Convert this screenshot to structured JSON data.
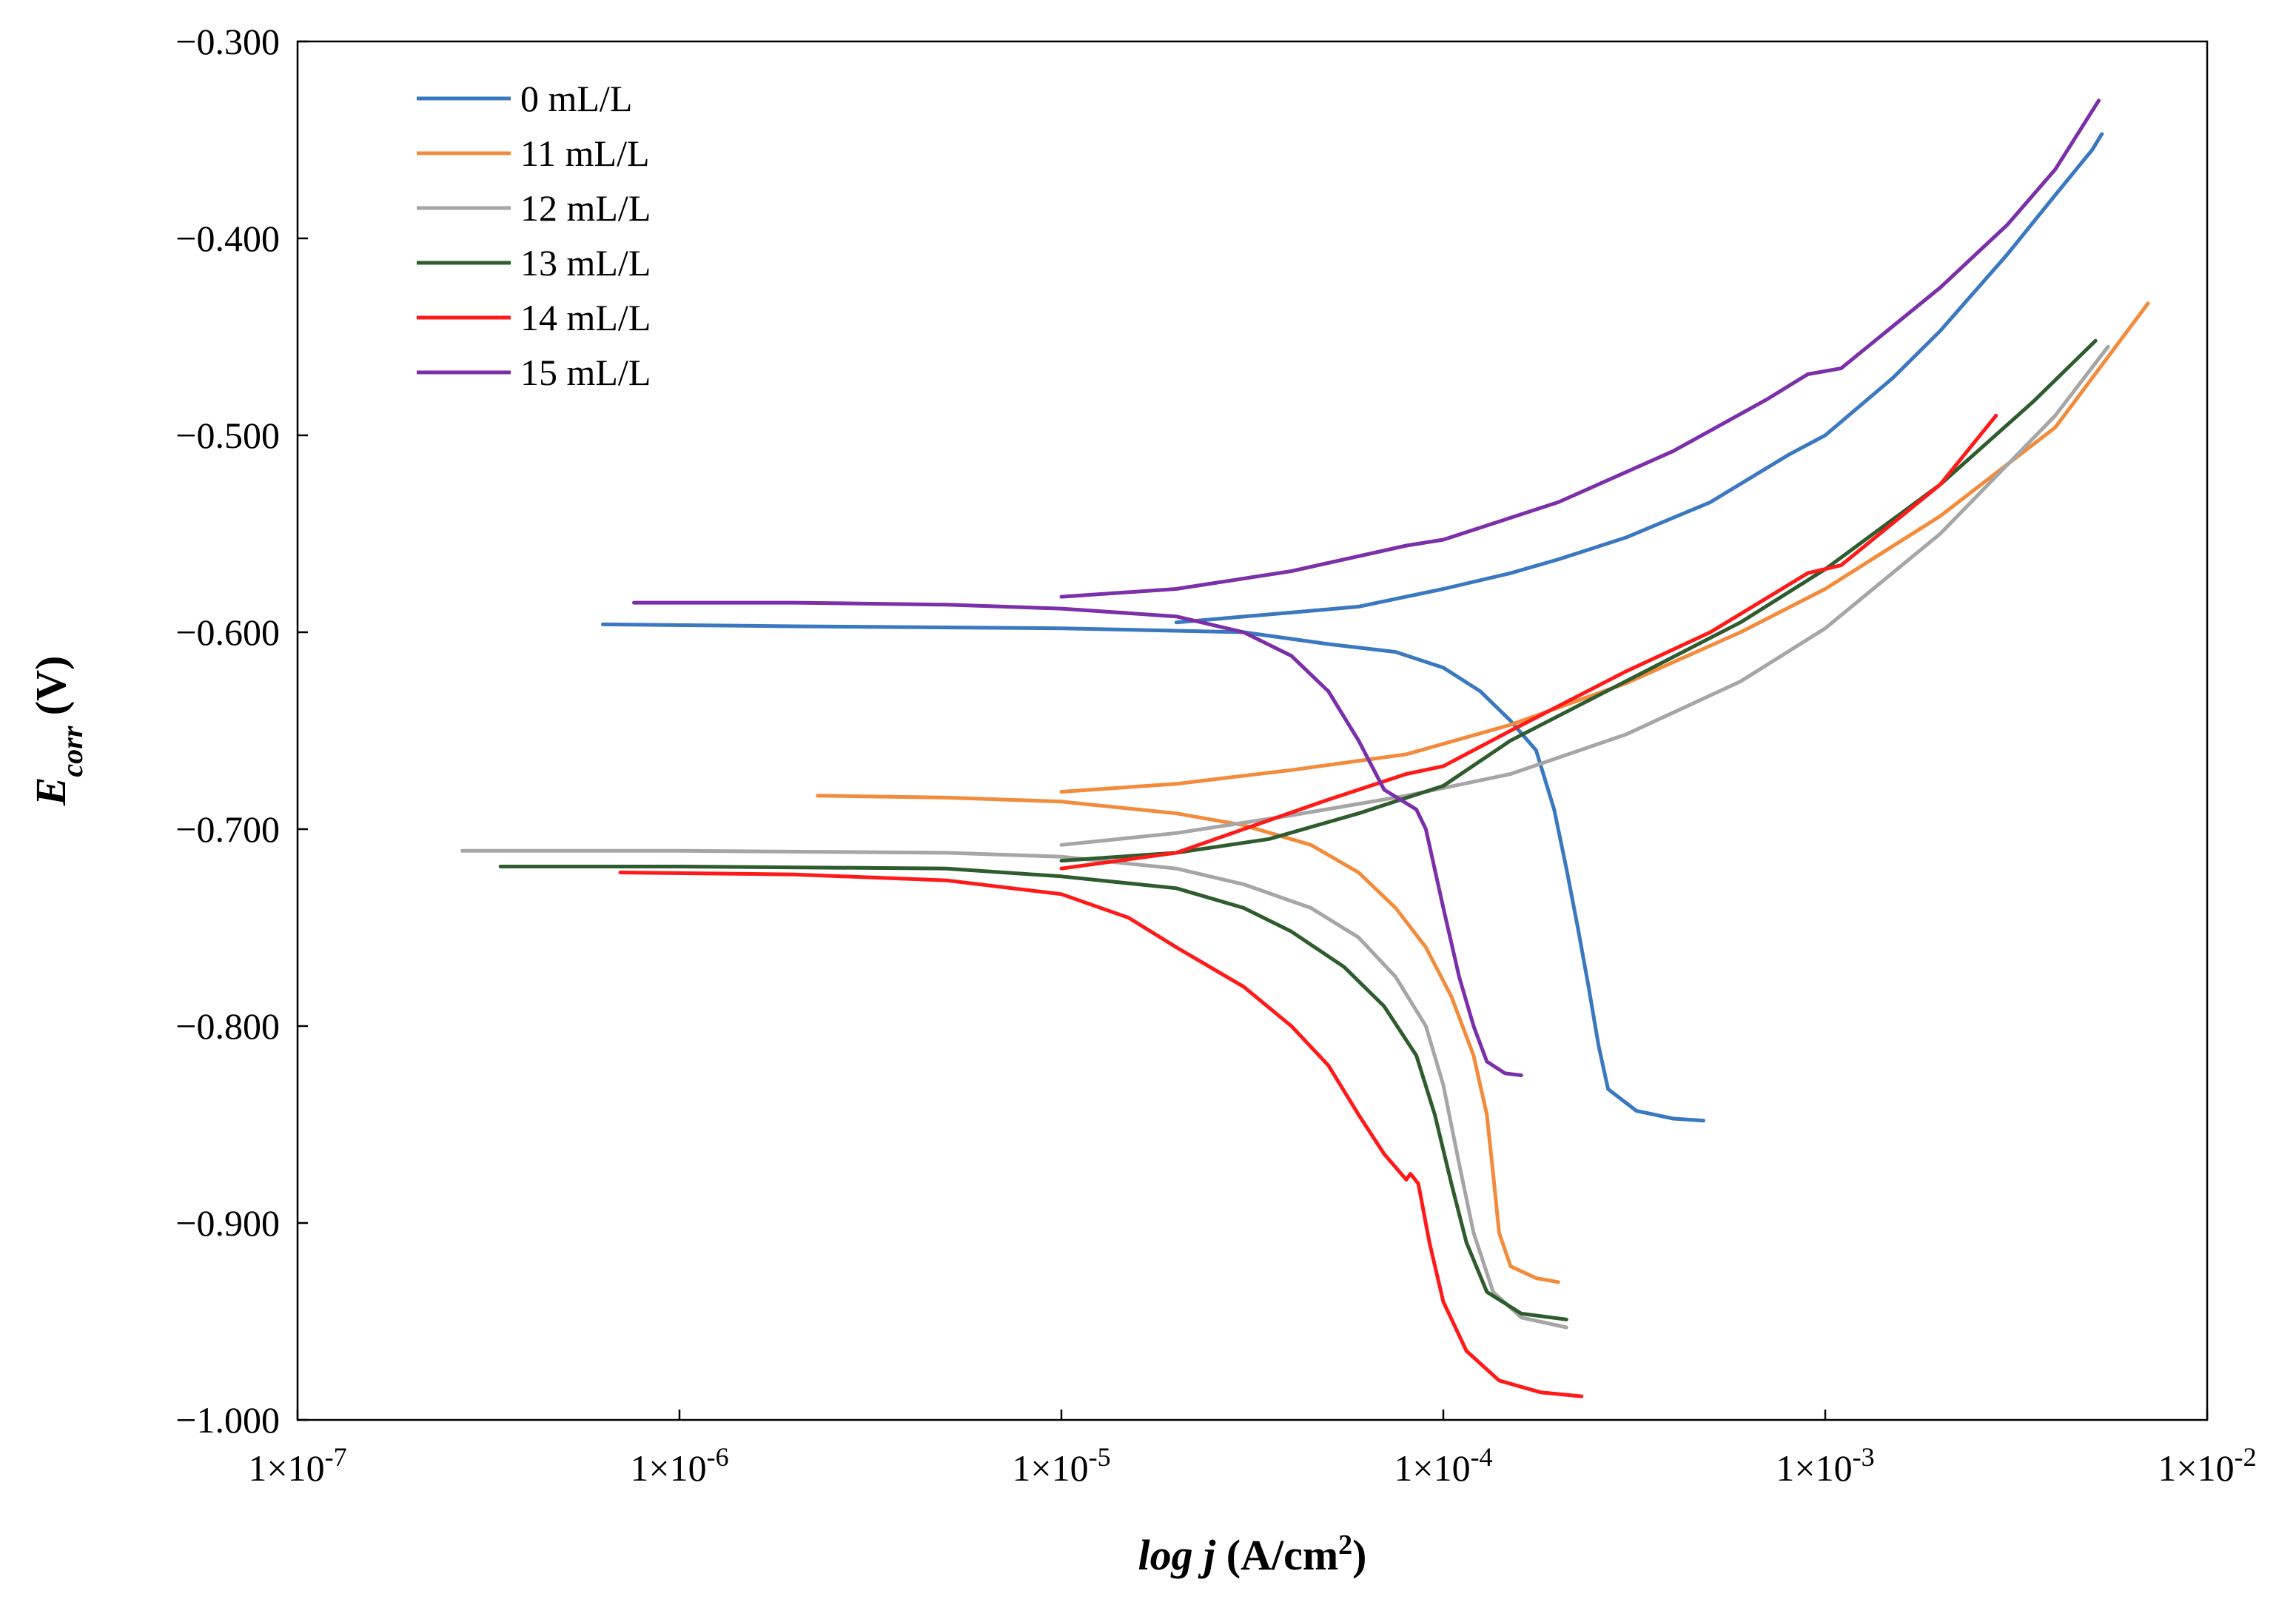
{
  "chart_data": {
    "type": "line",
    "title": "",
    "x_scale": "log",
    "xlim": [
      1e-07,
      0.01
    ],
    "ylim": [
      -1.0,
      -0.3
    ],
    "grid": false,
    "legend_position": "top-left",
    "xlabel": {
      "italic": "log j",
      "rest": " (A/cm",
      "sup": "2",
      "close": ")"
    },
    "ylabel": {
      "main": "E",
      "sub": "corr",
      "rest": " (V)"
    },
    "x_ticks": [
      {
        "value": 1e-07,
        "label": "1×10",
        "exp": "-7"
      },
      {
        "value": 1e-06,
        "label": "1×10",
        "exp": "-6"
      },
      {
        "value": 1e-05,
        "label": "1×10",
        "exp": "-5"
      },
      {
        "value": 0.0001,
        "label": "1×10",
        "exp": "-4"
      },
      {
        "value": 0.001,
        "label": "1×10",
        "exp": "-3"
      },
      {
        "value": 0.01,
        "label": "1×10",
        "exp": "-2"
      }
    ],
    "y_ticks": [
      {
        "value": -0.3,
        "label": "−0.300"
      },
      {
        "value": -0.4,
        "label": "−0.400"
      },
      {
        "value": -0.5,
        "label": "−0.500"
      },
      {
        "value": -0.6,
        "label": "−0.600"
      },
      {
        "value": -0.7,
        "label": "−0.700"
      },
      {
        "value": -0.8,
        "label": "−0.800"
      },
      {
        "value": -0.9,
        "label": "−0.900"
      },
      {
        "value": -1.0,
        "label": "−1.000"
      }
    ],
    "series": [
      {
        "name": "0 mL/L",
        "color": "#3a78c0",
        "points": [
          [
            6.3e-07,
            -0.596
          ],
          [
            2e-06,
            -0.597
          ],
          [
            1e-05,
            -0.598
          ],
          [
            3e-05,
            -0.6
          ],
          [
            5e-05,
            -0.606
          ],
          [
            7.5e-05,
            -0.61
          ],
          [
            0.0001,
            -0.618
          ],
          [
            0.000125,
            -0.63
          ],
          [
            0.00015,
            -0.645
          ],
          [
            0.000175,
            -0.66
          ],
          [
            0.000195,
            -0.69
          ],
          [
            0.00021,
            -0.72
          ],
          [
            0.000225,
            -0.75
          ],
          [
            0.00024,
            -0.78
          ],
          [
            0.000255,
            -0.81
          ],
          [
            0.00027,
            -0.832
          ],
          [
            0.00032,
            -0.843
          ],
          [
            0.0004,
            -0.847
          ],
          [
            0.00048,
            -0.848
          ]
        ],
        "points_anodic": [
          [
            2e-05,
            -0.595
          ],
          [
            4e-05,
            -0.59
          ],
          [
            6e-05,
            -0.587
          ],
          [
            0.0001,
            -0.578
          ],
          [
            0.00015,
            -0.57
          ],
          [
            0.0002,
            -0.563
          ],
          [
            0.0003,
            -0.552
          ],
          [
            0.0005,
            -0.534
          ],
          [
            0.0008,
            -0.51
          ],
          [
            0.001,
            -0.5
          ],
          [
            0.0015,
            -0.471
          ],
          [
            0.002,
            -0.447
          ],
          [
            0.003,
            -0.408
          ],
          [
            0.004,
            -0.378
          ],
          [
            0.005,
            -0.355
          ],
          [
            0.0053,
            -0.347
          ]
        ]
      },
      {
        "name": "11 mL/L",
        "color": "#f28c3c",
        "points": [
          [
            2.3e-06,
            -0.683
          ],
          [
            5e-06,
            -0.684
          ],
          [
            1e-05,
            -0.686
          ],
          [
            2e-05,
            -0.692
          ],
          [
            3e-05,
            -0.698
          ],
          [
            4.5e-05,
            -0.708
          ],
          [
            6e-05,
            -0.722
          ],
          [
            7.5e-05,
            -0.74
          ],
          [
            9e-05,
            -0.76
          ],
          [
            0.000105,
            -0.785
          ],
          [
            0.00012,
            -0.815
          ],
          [
            0.00013,
            -0.845
          ],
          [
            0.000135,
            -0.875
          ],
          [
            0.00014,
            -0.905
          ],
          [
            0.00015,
            -0.922
          ],
          [
            0.000175,
            -0.928
          ],
          [
            0.0002,
            -0.93
          ]
        ],
        "points_anodic": [
          [
            1e-05,
            -0.681
          ],
          [
            2e-05,
            -0.677
          ],
          [
            4e-05,
            -0.67
          ],
          [
            8e-05,
            -0.662
          ],
          [
            0.00015,
            -0.647
          ],
          [
            0.0003,
            -0.626
          ],
          [
            0.0006,
            -0.6
          ],
          [
            0.001,
            -0.578
          ],
          [
            0.002,
            -0.541
          ],
          [
            0.004,
            -0.496
          ],
          [
            0.007,
            -0.433
          ]
        ]
      },
      {
        "name": "12 mL/L",
        "color": "#a6a6a6",
        "points": [
          [
            2.7e-07,
            -0.711
          ],
          [
            1e-06,
            -0.711
          ],
          [
            5e-06,
            -0.712
          ],
          [
            1e-05,
            -0.714
          ],
          [
            2e-05,
            -0.72
          ],
          [
            3e-05,
            -0.728
          ],
          [
            4.5e-05,
            -0.74
          ],
          [
            6e-05,
            -0.755
          ],
          [
            7.5e-05,
            -0.775
          ],
          [
            9e-05,
            -0.8
          ],
          [
            0.0001,
            -0.83
          ],
          [
            0.00011,
            -0.87
          ],
          [
            0.00012,
            -0.905
          ],
          [
            0.000135,
            -0.935
          ],
          [
            0.00016,
            -0.948
          ],
          [
            0.00021,
            -0.953
          ]
        ],
        "points_anodic": [
          [
            1e-05,
            -0.708
          ],
          [
            2e-05,
            -0.702
          ],
          [
            4e-05,
            -0.693
          ],
          [
            8e-05,
            -0.683
          ],
          [
            0.00015,
            -0.672
          ],
          [
            0.0003,
            -0.652
          ],
          [
            0.0006,
            -0.625
          ],
          [
            0.001,
            -0.598
          ],
          [
            0.002,
            -0.55
          ],
          [
            0.004,
            -0.49
          ],
          [
            0.0055,
            -0.455
          ]
        ]
      },
      {
        "name": "13 mL/L",
        "color": "#2e5c2e",
        "points": [
          [
            3.4e-07,
            -0.719
          ],
          [
            1e-06,
            -0.719
          ],
          [
            5e-06,
            -0.72
          ],
          [
            1e-05,
            -0.724
          ],
          [
            2e-05,
            -0.73
          ],
          [
            3e-05,
            -0.74
          ],
          [
            4e-05,
            -0.752
          ],
          [
            5.5e-05,
            -0.77
          ],
          [
            7e-05,
            -0.79
          ],
          [
            8.5e-05,
            -0.815
          ],
          [
            9.5e-05,
            -0.845
          ],
          [
            0.000105,
            -0.88
          ],
          [
            0.000115,
            -0.91
          ],
          [
            0.00013,
            -0.935
          ],
          [
            0.00016,
            -0.946
          ],
          [
            0.00021,
            -0.949
          ]
        ],
        "points_anodic": [
          [
            1e-05,
            -0.716
          ],
          [
            2e-05,
            -0.712
          ],
          [
            3.5e-05,
            -0.705
          ],
          [
            6e-05,
            -0.692
          ],
          [
            0.0001,
            -0.678
          ],
          [
            0.00015,
            -0.655
          ],
          [
            0.0003,
            -0.625
          ],
          [
            0.0006,
            -0.595
          ],
          [
            0.001,
            -0.568
          ],
          [
            0.002,
            -0.525
          ],
          [
            0.0035,
            -0.483
          ],
          [
            0.0051,
            -0.452
          ]
        ]
      },
      {
        "name": "14 mL/L",
        "color": "#ff1a1a",
        "points": [
          [
            7e-07,
            -0.722
          ],
          [
            2e-06,
            -0.723
          ],
          [
            5e-06,
            -0.726
          ],
          [
            1e-05,
            -0.733
          ],
          [
            1.5e-05,
            -0.745
          ],
          [
            2e-05,
            -0.76
          ],
          [
            3e-05,
            -0.78
          ],
          [
            4e-05,
            -0.8
          ],
          [
            5e-05,
            -0.82
          ],
          [
            6e-05,
            -0.845
          ],
          [
            7e-05,
            -0.865
          ],
          [
            8e-05,
            -0.878
          ],
          [
            8.2e-05,
            -0.875
          ],
          [
            8.6e-05,
            -0.88
          ],
          [
            9.2e-05,
            -0.91
          ],
          [
            0.0001,
            -0.94
          ],
          [
            0.000115,
            -0.965
          ],
          [
            0.00014,
            -0.98
          ],
          [
            0.00018,
            -0.986
          ],
          [
            0.00023,
            -0.988
          ]
        ],
        "points_anodic": [
          [
            1e-05,
            -0.72
          ],
          [
            2e-05,
            -0.712
          ],
          [
            3e-05,
            -0.7
          ],
          [
            5e-05,
            -0.685
          ],
          [
            8e-05,
            -0.672
          ],
          [
            0.0001,
            -0.668
          ],
          [
            0.00015,
            -0.65
          ],
          [
            0.0003,
            -0.62
          ],
          [
            0.0005,
            -0.6
          ],
          [
            0.0009,
            -0.57
          ],
          [
            0.0011,
            -0.566
          ],
          [
            0.002,
            -0.525
          ],
          [
            0.0028,
            -0.49
          ]
        ]
      },
      {
        "name": "15 mL/L",
        "color": "#7b2fa8",
        "points": [
          [
            7.6e-07,
            -0.585
          ],
          [
            2e-06,
            -0.585
          ],
          [
            5e-06,
            -0.586
          ],
          [
            1e-05,
            -0.588
          ],
          [
            2e-05,
            -0.592
          ],
          [
            3e-05,
            -0.6
          ],
          [
            4e-05,
            -0.612
          ],
          [
            5e-05,
            -0.63
          ],
          [
            6e-05,
            -0.655
          ],
          [
            7e-05,
            -0.68
          ],
          [
            8.5e-05,
            -0.69
          ],
          [
            9e-05,
            -0.7
          ],
          [
            0.0001,
            -0.74
          ],
          [
            0.00011,
            -0.775
          ],
          [
            0.00012,
            -0.8
          ],
          [
            0.00013,
            -0.818
          ],
          [
            0.000145,
            -0.824
          ],
          [
            0.00016,
            -0.825
          ]
        ],
        "points_anodic": [
          [
            1e-05,
            -0.582
          ],
          [
            2e-05,
            -0.578
          ],
          [
            4e-05,
            -0.569
          ],
          [
            8e-05,
            -0.556
          ],
          [
            0.0001,
            -0.553
          ],
          [
            0.0002,
            -0.534
          ],
          [
            0.0004,
            -0.508
          ],
          [
            0.0007,
            -0.482
          ],
          [
            0.0009,
            -0.469
          ],
          [
            0.0011,
            -0.466
          ],
          [
            0.002,
            -0.425
          ],
          [
            0.003,
            -0.393
          ],
          [
            0.004,
            -0.365
          ],
          [
            0.0052,
            -0.33
          ]
        ]
      }
    ]
  }
}
